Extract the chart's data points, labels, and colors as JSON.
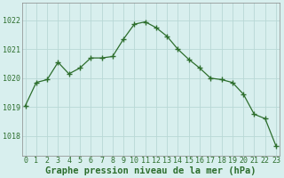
{
  "x": [
    0,
    1,
    2,
    3,
    4,
    5,
    6,
    7,
    8,
    9,
    10,
    11,
    12,
    13,
    14,
    15,
    16,
    17,
    18,
    19,
    20,
    21,
    22,
    23
  ],
  "y": [
    1019.05,
    1019.85,
    1019.95,
    1020.55,
    1020.15,
    1020.35,
    1020.7,
    1020.7,
    1020.75,
    1021.35,
    1021.87,
    1021.95,
    1021.75,
    1021.45,
    1021.0,
    1020.65,
    1020.35,
    1020.0,
    1019.95,
    1019.85,
    1019.45,
    1018.75,
    1018.6,
    1017.65
  ],
  "line_color": "#2d6e2d",
  "marker_color": "#2d6e2d",
  "bg_color": "#d8efee",
  "grid_color": "#b8d8d6",
  "title": "Graphe pression niveau de la mer (hPa)",
  "xlabel_ticks": [
    0,
    1,
    2,
    3,
    4,
    5,
    6,
    7,
    8,
    9,
    10,
    11,
    12,
    13,
    14,
    15,
    16,
    17,
    18,
    19,
    20,
    21,
    22,
    23
  ],
  "ytick_labels": [
    1018,
    1019,
    1020,
    1021,
    1022
  ],
  "ylim": [
    1017.3,
    1022.6
  ],
  "xlim": [
    -0.3,
    23.3
  ],
  "title_fontsize": 7.5,
  "tick_fontsize": 6.0,
  "title_color": "#2d6e2d",
  "tick_color": "#2d6e2d",
  "spine_color": "#888888"
}
